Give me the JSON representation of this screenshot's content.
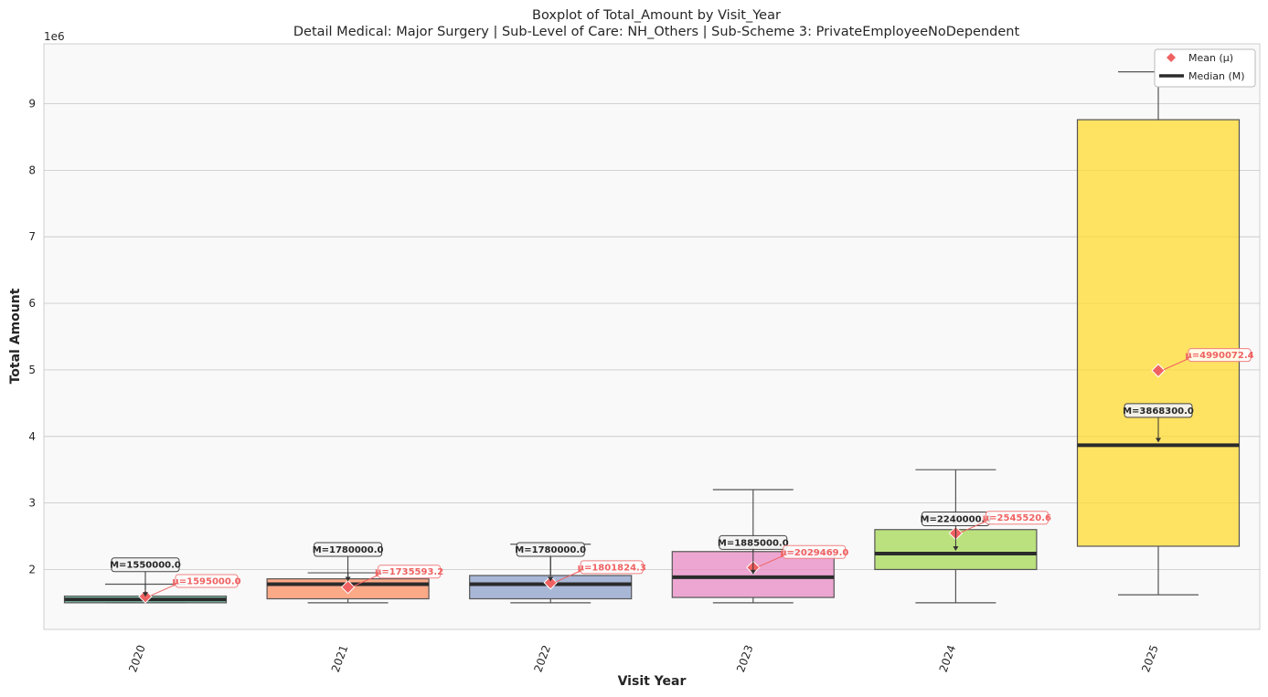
{
  "chart_data": {
    "type": "box",
    "title": "Boxplot of Total_Amount by Visit_Year",
    "subtitle": "Detail Medical: Major Surgery | Sub-Level of Care: NH_Others | Sub-Scheme 3: PrivateEmployeeNoDependent",
    "xlabel": "Visit Year",
    "ylabel": "Total Amount",
    "y_offset_label": "1e6",
    "y_scale": 1000000,
    "ylim": [
      1100000,
      9900000
    ],
    "yticks": [
      2000000,
      3000000,
      4000000,
      5000000,
      6000000,
      7000000,
      8000000,
      9000000
    ],
    "ytick_labels": [
      "2",
      "3",
      "4",
      "5",
      "6",
      "7",
      "8",
      "9"
    ],
    "grid": true,
    "legend_placement": "top-right",
    "legend": [
      {
        "label": "Mean (μ)",
        "marker": "diamond",
        "color": "#f06262"
      },
      {
        "label": "Median (M)",
        "marker": "line",
        "color": "#2b2b2b"
      }
    ],
    "categories": [
      "2020",
      "2021",
      "2022",
      "2023",
      "2024",
      "2025"
    ],
    "boxes": [
      {
        "category": "2020",
        "whisker_low": 1500000,
        "q1": 1500000,
        "median": 1550000,
        "q3": 1600000,
        "whisker_high": 1780000,
        "mean": 1595000,
        "color": "#66c2a5",
        "median_label": "M=1550000.0",
        "mean_label": "μ=1595000.0"
      },
      {
        "category": "2021",
        "whisker_low": 1500000,
        "q1": 1560000,
        "median": 1780000,
        "q3": 1860000,
        "whisker_high": 1950000,
        "mean": 1735593.2,
        "color": "#fc8d62",
        "median_label": "M=1780000.0",
        "mean_label": "μ=1735593.2"
      },
      {
        "category": "2022",
        "whisker_low": 1500000,
        "q1": 1560000,
        "median": 1780000,
        "q3": 1910000,
        "whisker_high": 2380000,
        "mean": 1801824.3,
        "color": "#8da0cb",
        "median_label": "M=1780000.0",
        "mean_label": "μ=1801824.3"
      },
      {
        "category": "2023",
        "whisker_low": 1500000,
        "q1": 1580000,
        "median": 1885000,
        "q3": 2270000,
        "whisker_high": 3200000,
        "mean": 2029469.0,
        "color": "#e78ac3",
        "median_label": "M=1885000.0",
        "mean_label": "μ=2029469.0"
      },
      {
        "category": "2024",
        "whisker_low": 1500000,
        "q1": 2000000,
        "median": 2240000,
        "q3": 2600000,
        "whisker_high": 3500000,
        "mean": 2545520.6,
        "color": "#a6d854",
        "median_label": "M=2240000.0",
        "mean_label": "μ=2545520.6"
      },
      {
        "category": "2025",
        "whisker_low": 1620000,
        "q1": 2350000,
        "median": 3868300,
        "q3": 8760000,
        "whisker_high": 9480000,
        "mean": 4990072.4,
        "color": "#ffd92f",
        "median_label": "M=3868300.0",
        "mean_label": "μ=4990072.4"
      }
    ]
  }
}
